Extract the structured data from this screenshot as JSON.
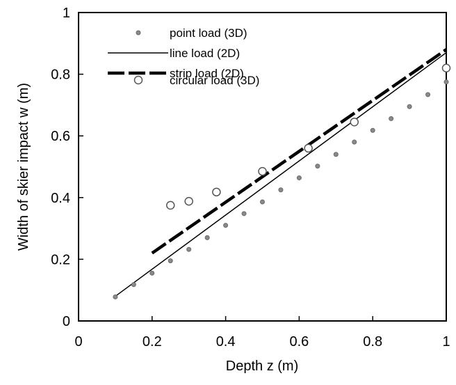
{
  "chart_data": {
    "type": "scatter",
    "xlabel": "Depth  z (m)",
    "ylabel": "Width of skier impact  w  (m)",
    "xlim": [
      0,
      1
    ],
    "ylim": [
      0,
      1
    ],
    "x_ticks": [
      "0",
      "0.2",
      "0.4",
      "0.6",
      "0.8",
      "1"
    ],
    "y_ticks": [
      "0",
      "0.2",
      "0.4",
      "0.6",
      "0.8",
      "1"
    ],
    "grid": false,
    "legend_position": "top-center",
    "series": [
      {
        "name": "point load (3D)",
        "style": "small-grey-dot",
        "x": [
          0.1,
          0.15,
          0.2,
          0.25,
          0.3,
          0.35,
          0.4,
          0.45,
          0.5,
          0.55,
          0.6,
          0.65,
          0.7,
          0.75,
          0.8,
          0.85,
          0.9,
          0.95,
          1.0
        ],
        "y": [
          0.078,
          0.118,
          0.155,
          0.195,
          0.232,
          0.27,
          0.31,
          0.348,
          0.386,
          0.425,
          0.464,
          0.502,
          0.54,
          0.58,
          0.618,
          0.656,
          0.695,
          0.734,
          0.775
        ]
      },
      {
        "name": "line load (2D)",
        "style": "thin-solid-line",
        "x": [
          0.1,
          1.0
        ],
        "y": [
          0.08,
          0.87
        ]
      },
      {
        "name": "strip load (2D)",
        "style": "thick-dashed-line",
        "x": [
          0.2,
          1.0
        ],
        "y": [
          0.22,
          0.88
        ]
      },
      {
        "name": "circular load (3D)",
        "style": "open-circle",
        "x": [
          0.25,
          0.3,
          0.375,
          0.5,
          0.625,
          0.75,
          1.0
        ],
        "y": [
          0.375,
          0.388,
          0.418,
          0.485,
          0.56,
          0.645,
          0.82
        ]
      }
    ]
  }
}
